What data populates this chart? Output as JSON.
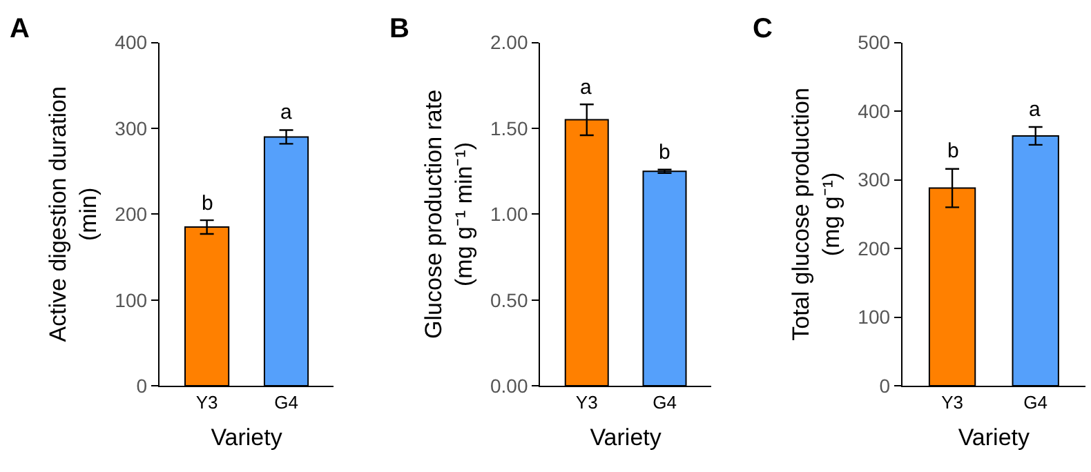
{
  "chart_data": [
    {
      "type": "bar",
      "title": "A",
      "xlabel": "Variety",
      "ylabel": "Active digestion duration\n(min)",
      "categories": [
        "Y3",
        "G4"
      ],
      "values": [
        185,
        290
      ],
      "errors": [
        8,
        8
      ],
      "colors": [
        "#ff8000",
        "#55a0fb"
      ],
      "ylim": [
        0,
        400
      ],
      "yticks": [
        0,
        100,
        200,
        300,
        400
      ],
      "annotations": [
        {
          "text": "b",
          "x": "Y3",
          "y": 193
        },
        {
          "text": "a",
          "x": "G4",
          "y": 298
        }
      ]
    },
    {
      "type": "bar",
      "title": "B",
      "xlabel": "Variety",
      "ylabel": "Glucose production rate\n(mg g⁻¹ min⁻¹)",
      "categories": [
        "Y3",
        "G4"
      ],
      "values": [
        1.55,
        1.25
      ],
      "errors": [
        0.09,
        0.01
      ],
      "colors": [
        "#ff8000",
        "#55a0fb"
      ],
      "ylim": [
        0,
        2
      ],
      "yticks": [
        {
          "value": 0,
          "label": "0.00"
        },
        {
          "value": 0.5,
          "label": "0.50"
        },
        {
          "value": 1,
          "label": "1.00"
        },
        {
          "value": 1.5,
          "label": "1.50"
        },
        {
          "value": 2,
          "label": "2.00"
        }
      ],
      "annotations": [
        {
          "text": "a",
          "x": "Y3",
          "y": 1.64
        },
        {
          "text": "b",
          "x": "G4",
          "y": 1.26
        }
      ]
    },
    {
      "type": "bar",
      "title": "C",
      "xlabel": "Variety",
      "ylabel": "Total glucose production\n(mg g⁻¹)",
      "categories": [
        "Y3",
        "G4"
      ],
      "values": [
        288,
        364
      ],
      "errors": [
        28,
        13
      ],
      "colors": [
        "#ff8000",
        "#55a0fb"
      ],
      "ylim": [
        0,
        500
      ],
      "yticks": [
        0,
        100,
        200,
        300,
        400,
        500
      ],
      "annotations": [
        {
          "text": "b",
          "x": "Y3",
          "y": 316
        },
        {
          "text": "a",
          "x": "G4",
          "y": 377
        }
      ]
    }
  ]
}
